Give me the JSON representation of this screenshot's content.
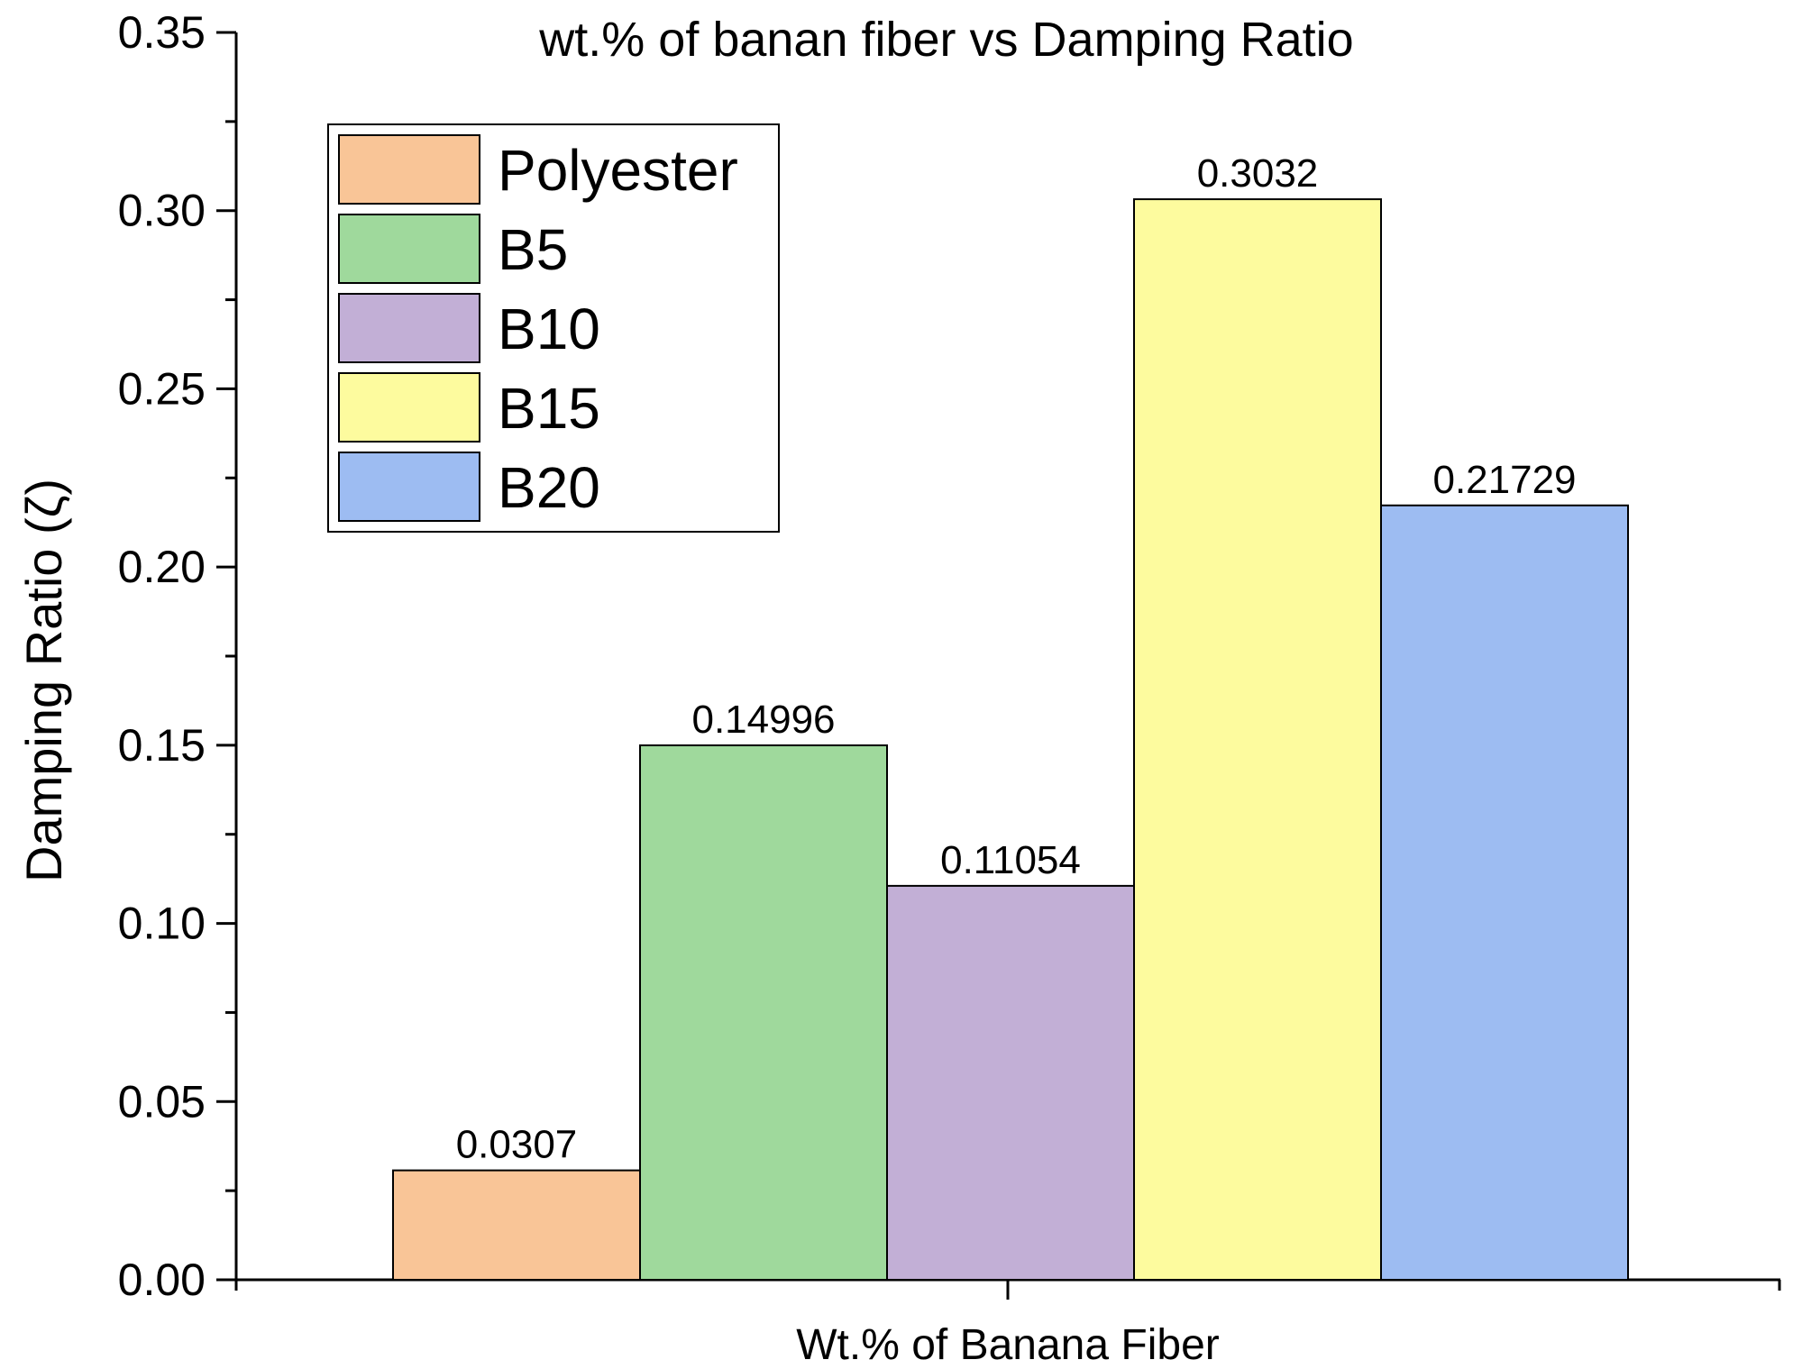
{
  "chart_data": {
    "type": "bar",
    "title": "wt.% of banan fiber vs Damping Ratio",
    "xlabel": "Wt.% of Banana Fiber",
    "ylabel": "Damping Ratio (ζ)",
    "ylim": [
      0,
      0.35
    ],
    "yticks": [
      "0.00",
      "0.05",
      "0.10",
      "0.15",
      "0.20",
      "0.25",
      "0.30",
      "0.35"
    ],
    "grid": false,
    "legend_position": "top-left",
    "series": [
      {
        "name": "Polyester",
        "value": 0.0307,
        "label": "0.0307",
        "color": "#f9c597"
      },
      {
        "name": "B5",
        "value": 0.14996,
        "label": "0.14996",
        "color": "#9fd99c"
      },
      {
        "name": "B10",
        "value": 0.11054,
        "label": "0.11054",
        "color": "#c2afd6"
      },
      {
        "name": "B15",
        "value": 0.3032,
        "label": "0.3032",
        "color": "#fdfb9e"
      },
      {
        "name": "B20",
        "value": 0.21729,
        "label": "0.21729",
        "color": "#9dbcf2"
      }
    ]
  }
}
